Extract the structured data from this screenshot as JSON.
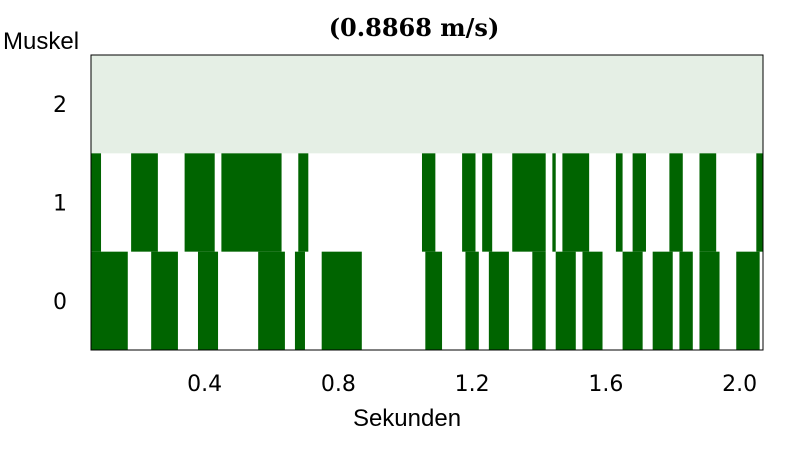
{
  "chart_data": {
    "type": "bar",
    "title": "(0.8868 m/s)",
    "xlabel": "Sekunden",
    "ylabel": "Muskel",
    "xlim": [
      0.06,
      2.07
    ],
    "x_ticks": [
      "0.4",
      "0.8",
      "1.2",
      "1.6",
      "2.0"
    ],
    "x_tick_values": [
      0.4,
      0.8,
      1.2,
      1.6,
      2.0
    ],
    "y_categories": [
      "0",
      "1",
      "2"
    ],
    "grid": false,
    "colors": {
      "active": "#006400",
      "rest": "#ffffff",
      "row2_background": "#e5efe5",
      "border": "#000000"
    },
    "series": [
      {
        "row": "0",
        "active_intervals": [
          [
            0.06,
            0.17
          ],
          [
            0.24,
            0.32
          ],
          [
            0.38,
            0.44
          ],
          [
            0.56,
            0.64
          ],
          [
            0.67,
            0.7
          ],
          [
            0.75,
            0.87
          ],
          [
            1.06,
            1.11
          ],
          [
            1.18,
            1.22
          ],
          [
            1.25,
            1.31
          ],
          [
            1.38,
            1.42
          ],
          [
            1.45,
            1.51
          ],
          [
            1.53,
            1.59
          ],
          [
            1.65,
            1.71
          ],
          [
            1.74,
            1.8
          ],
          [
            1.82,
            1.86
          ],
          [
            1.88,
            1.94
          ],
          [
            1.99,
            2.06
          ]
        ]
      },
      {
        "row": "1",
        "active_intervals": [
          [
            0.06,
            0.09
          ],
          [
            0.18,
            0.26
          ],
          [
            0.34,
            0.43
          ],
          [
            0.45,
            0.63
          ],
          [
            0.68,
            0.71
          ],
          [
            1.05,
            1.09
          ],
          [
            1.17,
            1.21
          ],
          [
            1.23,
            1.26
          ],
          [
            1.32,
            1.42
          ],
          [
            1.44,
            1.45
          ],
          [
            1.47,
            1.55
          ],
          [
            1.63,
            1.65
          ],
          [
            1.68,
            1.72
          ],
          [
            1.79,
            1.83
          ],
          [
            1.88,
            1.93
          ],
          [
            2.05,
            2.07
          ]
        ]
      },
      {
        "row": "2",
        "active_intervals": []
      }
    ]
  }
}
